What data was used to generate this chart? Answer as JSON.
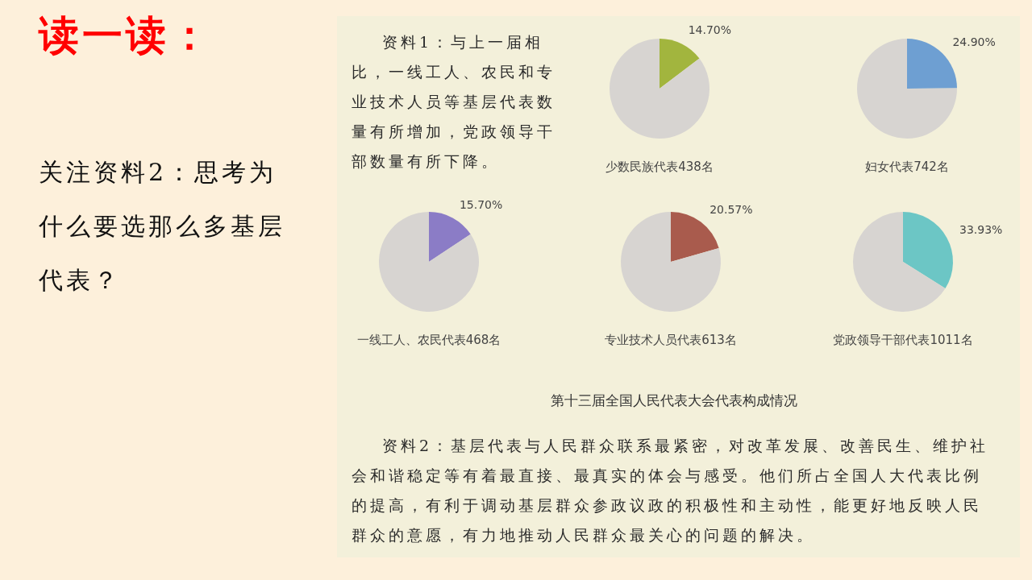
{
  "chart_data": [
    {
      "type": "other",
      "title": "读一读：",
      "annotations": [
        "关注资料2：思考为什么要选那么多基层代表？"
      ]
    },
    {
      "type": "other",
      "annotations": [
        "资料1：与上一届相比，一线工人、农民和专业技术人员等基层代表数量有所增加，党政领导干部数量有所下降。"
      ]
    },
    {
      "type": "pie",
      "title": "少数民族代表438名",
      "categories": [
        null,
        null
      ],
      "values": [
        14.7,
        85.3
      ],
      "colors": [
        "#a2b53e",
        "#d7d4d1"
      ],
      "value_labels": [
        "14.70%",
        null
      ]
    },
    {
      "type": "pie",
      "title": "妇女代表742名",
      "categories": [
        null,
        null
      ],
      "values": [
        24.9,
        75.1
      ],
      "colors": [
        "#6e9fd2",
        "#d7d4d1"
      ],
      "value_labels": [
        "24.90%",
        null
      ]
    },
    {
      "type": "pie",
      "title": "一线工人、农民代表468名",
      "categories": [
        null,
        null
      ],
      "values": [
        15.7,
        84.3
      ],
      "colors": [
        "#8b7cc6",
        "#d7d4d1"
      ],
      "value_labels": [
        "15.70%",
        null
      ]
    },
    {
      "type": "pie",
      "title": "专业技术人员代表613名",
      "categories": [
        null,
        null
      ],
      "values": [
        20.57,
        79.43
      ],
      "colors": [
        "#a95b4d",
        "#d7d4d1"
      ],
      "value_labels": [
        "20.57%",
        null
      ]
    },
    {
      "type": "pie",
      "title": "党政领导干部代表1011名",
      "categories": [
        null,
        null
      ],
      "values": [
        33.93,
        66.07
      ],
      "colors": [
        "#6cc6c5",
        "#d7d4d1"
      ],
      "value_labels": [
        "33.93%",
        null
      ]
    },
    {
      "type": "other",
      "annotations": [
        "第十三届全国人民代表大会代表构成情况",
        "资料2：基层代表与人民群众联系最紧密，对改革发展、改善民生、维护社会和谐稳定等有着最直接、最真实的体会与感受。他们所占全国人大代表比例的提高，有利于调动基层群众参政议政的积极性和主动性，能更好地反映人民群众的意愿，有力地推动人民群众最关心的问题的解决。"
      ]
    }
  ]
}
